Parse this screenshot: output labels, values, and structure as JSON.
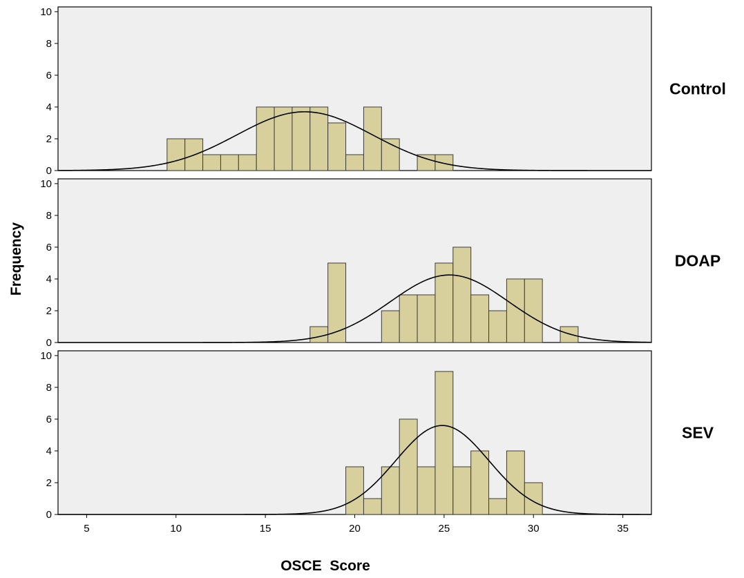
{
  "chart_data": {
    "type": "bar",
    "subtype": "histogram-with-normal-curve",
    "xlabel": "OSCE  Score",
    "ylabel": "Frequency",
    "xlim": [
      3.4,
      36.6
    ],
    "ylim": [
      0,
      10.3
    ],
    "x_ticks": [
      5,
      10,
      15,
      20,
      25,
      30,
      35
    ],
    "y_ticks": [
      0,
      2,
      4,
      6,
      8,
      10
    ],
    "bin_width": 1,
    "grid": false,
    "colors": {
      "panel_bg": "#efefef",
      "bar_fill": "#d7d09c",
      "bar_stroke": "#3b3b3b",
      "curve": "#000000"
    },
    "panels": [
      {
        "name": "Control",
        "bins": [
          {
            "x": 10,
            "y": 2
          },
          {
            "x": 11,
            "y": 2
          },
          {
            "x": 12,
            "y": 1
          },
          {
            "x": 13,
            "y": 1
          },
          {
            "x": 14,
            "y": 1
          },
          {
            "x": 15,
            "y": 4
          },
          {
            "x": 16,
            "y": 4
          },
          {
            "x": 17,
            "y": 4
          },
          {
            "x": 18,
            "y": 4
          },
          {
            "x": 19,
            "y": 3
          },
          {
            "x": 20,
            "y": 1
          },
          {
            "x": 21,
            "y": 4
          },
          {
            "x": 22,
            "y": 2
          },
          {
            "x": 24,
            "y": 1
          },
          {
            "x": 25,
            "y": 1
          }
        ],
        "normal_curve": {
          "mean": 17.2,
          "sd": 3.8,
          "peak": 3.7
        }
      },
      {
        "name": "DOAP",
        "bins": [
          {
            "x": 18,
            "y": 1
          },
          {
            "x": 19,
            "y": 5
          },
          {
            "x": 22,
            "y": 2
          },
          {
            "x": 23,
            "y": 3
          },
          {
            "x": 24,
            "y": 3
          },
          {
            "x": 25,
            "y": 5
          },
          {
            "x": 26,
            "y": 6
          },
          {
            "x": 27,
            "y": 3
          },
          {
            "x": 28,
            "y": 2
          },
          {
            "x": 29,
            "y": 4
          },
          {
            "x": 30,
            "y": 4
          },
          {
            "x": 32,
            "y": 1
          }
        ],
        "normal_curve": {
          "mean": 25.3,
          "sd": 3.3,
          "peak": 4.25
        }
      },
      {
        "name": "SEV",
        "bins": [
          {
            "x": 20,
            "y": 3
          },
          {
            "x": 21,
            "y": 1
          },
          {
            "x": 22,
            "y": 3
          },
          {
            "x": 23,
            "y": 6
          },
          {
            "x": 24,
            "y": 3
          },
          {
            "x": 25,
            "y": 9
          },
          {
            "x": 26,
            "y": 3
          },
          {
            "x": 27,
            "y": 4
          },
          {
            "x": 28,
            "y": 1
          },
          {
            "x": 29,
            "y": 4
          },
          {
            "x": 30,
            "y": 2
          }
        ],
        "normal_curve": {
          "mean": 24.9,
          "sd": 2.6,
          "peak": 5.6
        }
      }
    ]
  }
}
